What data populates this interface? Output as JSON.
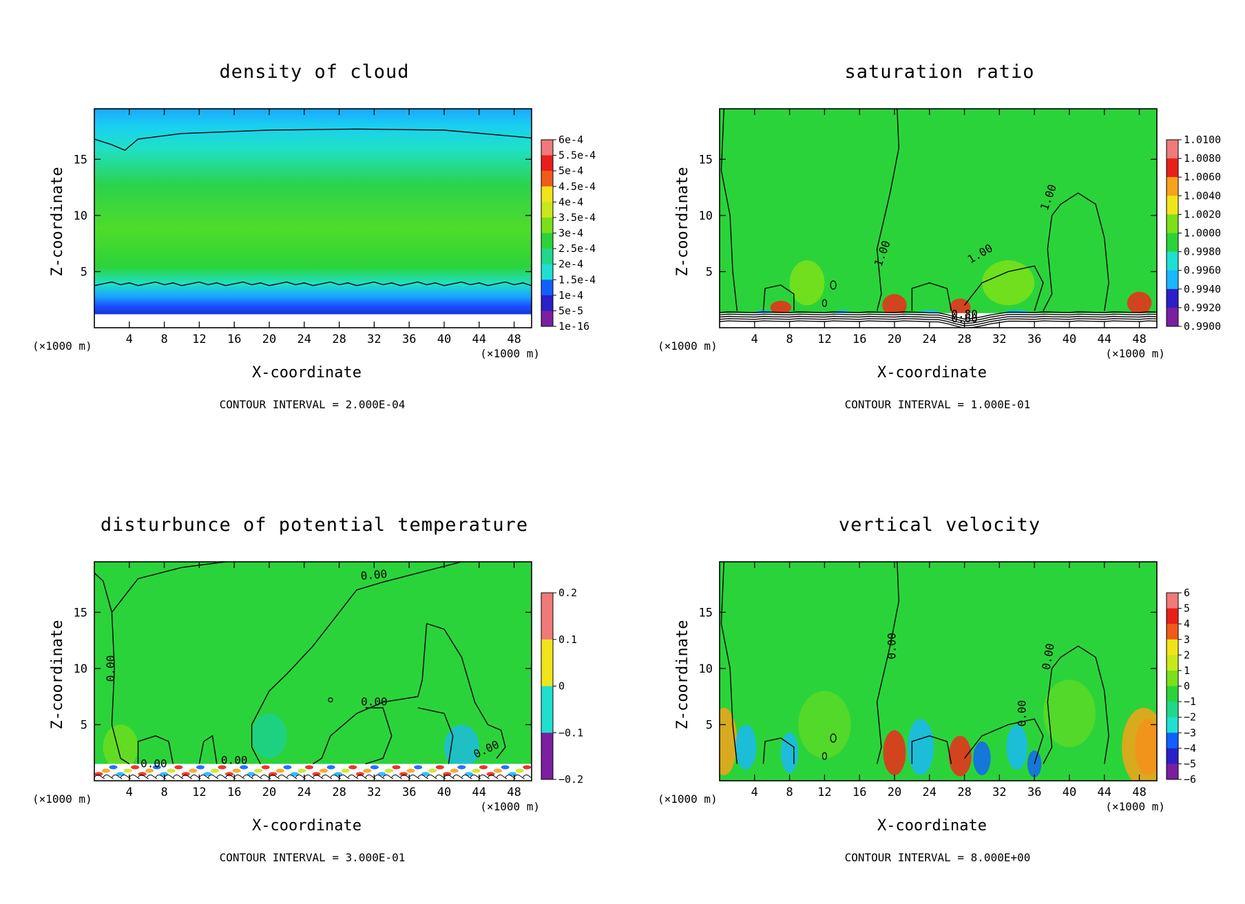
{
  "figure": {
    "colors": {
      "field_green": "#2bd33a",
      "panel_border": "#000000",
      "background": "#ffffff"
    }
  },
  "chart_data": [
    {
      "type": "heatmap",
      "title": "density of cloud",
      "xlabel": "X-coordinate",
      "ylabel": "Z-coordinate",
      "x_unit": "(×1000 m)",
      "y_unit": "(×1000 m)",
      "xlim": [
        0,
        50
      ],
      "ylim": [
        0,
        19.5
      ],
      "x_ticks": [
        4,
        8,
        12,
        16,
        20,
        24,
        28,
        32,
        36,
        40,
        44,
        48
      ],
      "y_ticks": [
        5,
        10,
        15
      ],
      "colorbar_labels": [
        "6e-4",
        "5.5e-4",
        "5e-4",
        "4.5e-4",
        "4e-4",
        "3.5e-4",
        "3e-4",
        "2.5e-4",
        "2e-4",
        "1.5e-4",
        "1e-4",
        "5e-5",
        "1e-16"
      ],
      "contour_labels": [],
      "contour_interval": "CONTOUR INTERVAL = 2.000E-04",
      "field": "density"
    },
    {
      "type": "heatmap",
      "title": "saturation ratio",
      "xlabel": "X-coordinate",
      "ylabel": "Z-coordinate",
      "x_unit": "(×1000 m)",
      "y_unit": "(×1000 m)",
      "xlim": [
        0,
        50
      ],
      "ylim": [
        0,
        19.5
      ],
      "x_ticks": [
        4,
        8,
        12,
        16,
        20,
        24,
        28,
        32,
        36,
        40,
        44,
        48
      ],
      "y_ticks": [
        5,
        10,
        15
      ],
      "colorbar_labels": [
        "1.0100",
        "1.0080",
        "1.0060",
        "1.0040",
        "1.0020",
        "1.0000",
        "0.9980",
        "0.9960",
        "0.9940",
        "0.9920",
        "0.9900"
      ],
      "contour_labels": [
        "1.00",
        "1.00",
        "1.00",
        "0.80",
        "0.60"
      ],
      "contour_interval": "CONTOUR INTERVAL = 1.000E-01",
      "field": "saturation"
    },
    {
      "type": "heatmap",
      "title": "disturbunce of potential temperature",
      "xlabel": "X-coordinate",
      "ylabel": "Z-coordinate",
      "x_unit": "(×1000 m)",
      "y_unit": "(×1000 m)",
      "xlim": [
        0,
        50
      ],
      "ylim": [
        0,
        19.5
      ],
      "x_ticks": [
        4,
        8,
        12,
        16,
        20,
        24,
        28,
        32,
        36,
        40,
        44,
        48
      ],
      "y_ticks": [
        5,
        10,
        15
      ],
      "colorbar_labels": [
        "0.2",
        "0.1",
        "0",
        "−0.1",
        "−0.2"
      ],
      "contour_labels": [
        "0.00",
        "0.00",
        "0.00",
        "0.00",
        "0.00",
        "0.00"
      ],
      "contour_interval": "CONTOUR INTERVAL = 3.000E-01",
      "field": "theta"
    },
    {
      "type": "heatmap",
      "title": "vertical velocity",
      "xlabel": "X-coordinate",
      "ylabel": "Z-coordinate",
      "x_unit": "(×1000 m)",
      "y_unit": "(×1000 m)",
      "xlim": [
        0,
        50
      ],
      "ylim": [
        0,
        19.5
      ],
      "x_ticks": [
        4,
        8,
        12,
        16,
        20,
        24,
        28,
        32,
        36,
        40,
        44,
        48
      ],
      "y_ticks": [
        5,
        10,
        15
      ],
      "colorbar_labels": [
        "6",
        "5",
        "4",
        "3",
        "2",
        "1",
        "0",
        "−1",
        "−2",
        "−3",
        "−4",
        "−5",
        "−6"
      ],
      "contour_labels": [
        "0.00",
        "0.00",
        "0.00"
      ],
      "contour_interval": "CONTOUR INTERVAL = 8.000E+00",
      "field": "velocity"
    }
  ]
}
